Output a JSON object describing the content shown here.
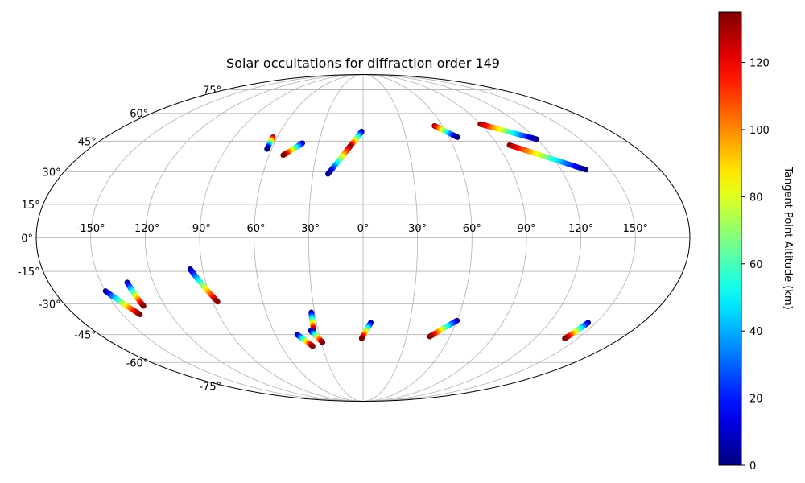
{
  "chart_data": {
    "type": "scatter",
    "projection": "mollweide",
    "title": "Solar occultations for diffraction order 149",
    "lon_ticks": [
      -150,
      -120,
      -90,
      -60,
      -30,
      0,
      30,
      60,
      90,
      120,
      150
    ],
    "lon_tick_labels": [
      "-150°",
      "-120°",
      "-90°",
      "-60°",
      "-30°",
      "0°",
      "30°",
      "60°",
      "90°",
      "120°",
      "150°"
    ],
    "lat_ticks": [
      75,
      60,
      45,
      30,
      15,
      0,
      -15,
      -30,
      -45,
      -60,
      -75
    ],
    "lat_tick_labels": [
      "75°",
      "60°",
      "45°",
      "30°",
      "15°",
      "0°",
      "-15°",
      "-30°",
      "-45°",
      "-60°",
      "-75°"
    ],
    "grid": true,
    "colormap": "jet",
    "colorbar": {
      "label": "Tangent Point Altitude (km)",
      "range": [
        0,
        135
      ],
      "ticks": [
        0,
        20,
        40,
        60,
        80,
        100,
        120
      ],
      "tick_labels": [
        "0",
        "20",
        "40",
        "60",
        "80",
        "100",
        "120"
      ],
      "placement": "right"
    },
    "tracks": [
      {
        "start": [
          -63,
          47
        ],
        "end": [
          -63,
          41
        ],
        "alt_start": 135,
        "alt_end": 0
      },
      {
        "start": [
          -41,
          44
        ],
        "end": [
          -51,
          38
        ],
        "alt_start": 0,
        "alt_end": 0
      },
      {
        "start": [
          -1,
          50
        ],
        "end": [
          -9,
          42
        ],
        "alt_start": 0,
        "alt_end": 0
      },
      {
        "start": [
          -9,
          42
        ],
        "end": [
          -21,
          29
        ],
        "alt_start": 135,
        "alt_end": 0
      },
      {
        "start": [
          54,
          53
        ],
        "end": [
          66,
          47
        ],
        "alt_start": 135,
        "alt_end": 0
      },
      {
        "start": [
          90,
          54
        ],
        "end": [
          120,
          46
        ],
        "alt_start": 135,
        "alt_end": 0
      },
      {
        "start": [
          98,
          43
        ],
        "end": [
          135,
          31
        ],
        "alt_start": 135,
        "alt_end": 0
      },
      {
        "start": [
          -150,
          -24
        ],
        "end": [
          -139,
          -35
        ],
        "alt_start": 0,
        "alt_end": 135
      },
      {
        "start": [
          -135,
          -20
        ],
        "end": [
          -133,
          -31
        ],
        "alt_start": 0,
        "alt_end": 135
      },
      {
        "start": [
          -97,
          -14
        ],
        "end": [
          -87,
          -29
        ],
        "alt_start": 0,
        "alt_end": 135
      },
      {
        "start": [
          -45,
          -45
        ],
        "end": [
          -37,
          -51
        ],
        "alt_start": 0,
        "alt_end": 0
      },
      {
        "start": [
          -32,
          -34
        ],
        "end": [
          -33,
          -43
        ],
        "alt_start": 0,
        "alt_end": 0
      },
      {
        "start": [
          -35,
          -43
        ],
        "end": [
          -29,
          -49
        ],
        "alt_start": 0,
        "alt_end": 135
      },
      {
        "start": [
          5,
          -39
        ],
        "end": [
          -1,
          -47
        ],
        "alt_start": 0,
        "alt_end": 135
      },
      {
        "start": [
          60,
          -38
        ],
        "end": [
          46,
          -46
        ],
        "alt_start": 0,
        "alt_end": 135
      },
      {
        "start": [
          145,
          -39
        ],
        "end": [
          141,
          -47
        ],
        "alt_start": 0,
        "alt_end": 135
      }
    ]
  }
}
